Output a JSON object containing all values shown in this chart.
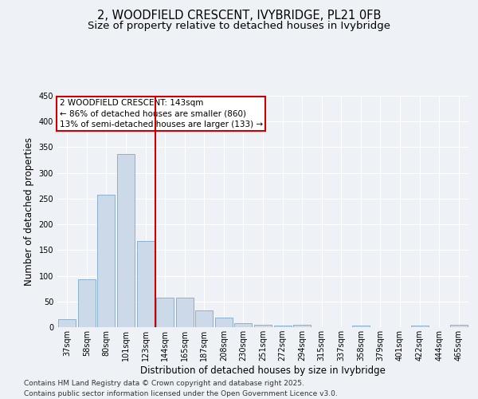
{
  "title_line1": "2, WOODFIELD CRESCENT, IVYBRIDGE, PL21 0FB",
  "title_line2": "Size of property relative to detached houses in Ivybridge",
  "xlabel": "Distribution of detached houses by size in Ivybridge",
  "ylabel": "Number of detached properties",
  "bar_color": "#ccd9e8",
  "bar_edge_color": "#7fa8c8",
  "background_color": "#eef2f7",
  "grid_color": "#ffffff",
  "categories": [
    "37sqm",
    "58sqm",
    "80sqm",
    "101sqm",
    "123sqm",
    "144sqm",
    "165sqm",
    "187sqm",
    "208sqm",
    "230sqm",
    "251sqm",
    "272sqm",
    "294sqm",
    "315sqm",
    "337sqm",
    "358sqm",
    "379sqm",
    "401sqm",
    "422sqm",
    "444sqm",
    "465sqm"
  ],
  "values": [
    15,
    93,
    258,
    336,
    167,
    57,
    57,
    33,
    18,
    7,
    5,
    3,
    4,
    0,
    0,
    3,
    0,
    0,
    3,
    0,
    4
  ],
  "ylim": [
    0,
    450
  ],
  "yticks": [
    0,
    50,
    100,
    150,
    200,
    250,
    300,
    350,
    400,
    450
  ],
  "property_line_x": 5,
  "annotation_text_line1": "2 WOODFIELD CRESCENT: 143sqm",
  "annotation_text_line2": "← 86% of detached houses are smaller (860)",
  "annotation_text_line3": "13% of semi-detached houses are larger (133) →",
  "annotation_box_facecolor": "#ffffff",
  "annotation_box_edgecolor": "#cc0000",
  "vline_color": "#cc0000",
  "footer_line1": "Contains HM Land Registry data © Crown copyright and database right 2025.",
  "footer_line2": "Contains public sector information licensed under the Open Government Licence v3.0.",
  "title_fontsize": 10.5,
  "subtitle_fontsize": 9.5,
  "axis_label_fontsize": 8.5,
  "tick_fontsize": 7,
  "annotation_fontsize": 7.5,
  "footer_fontsize": 6.5
}
